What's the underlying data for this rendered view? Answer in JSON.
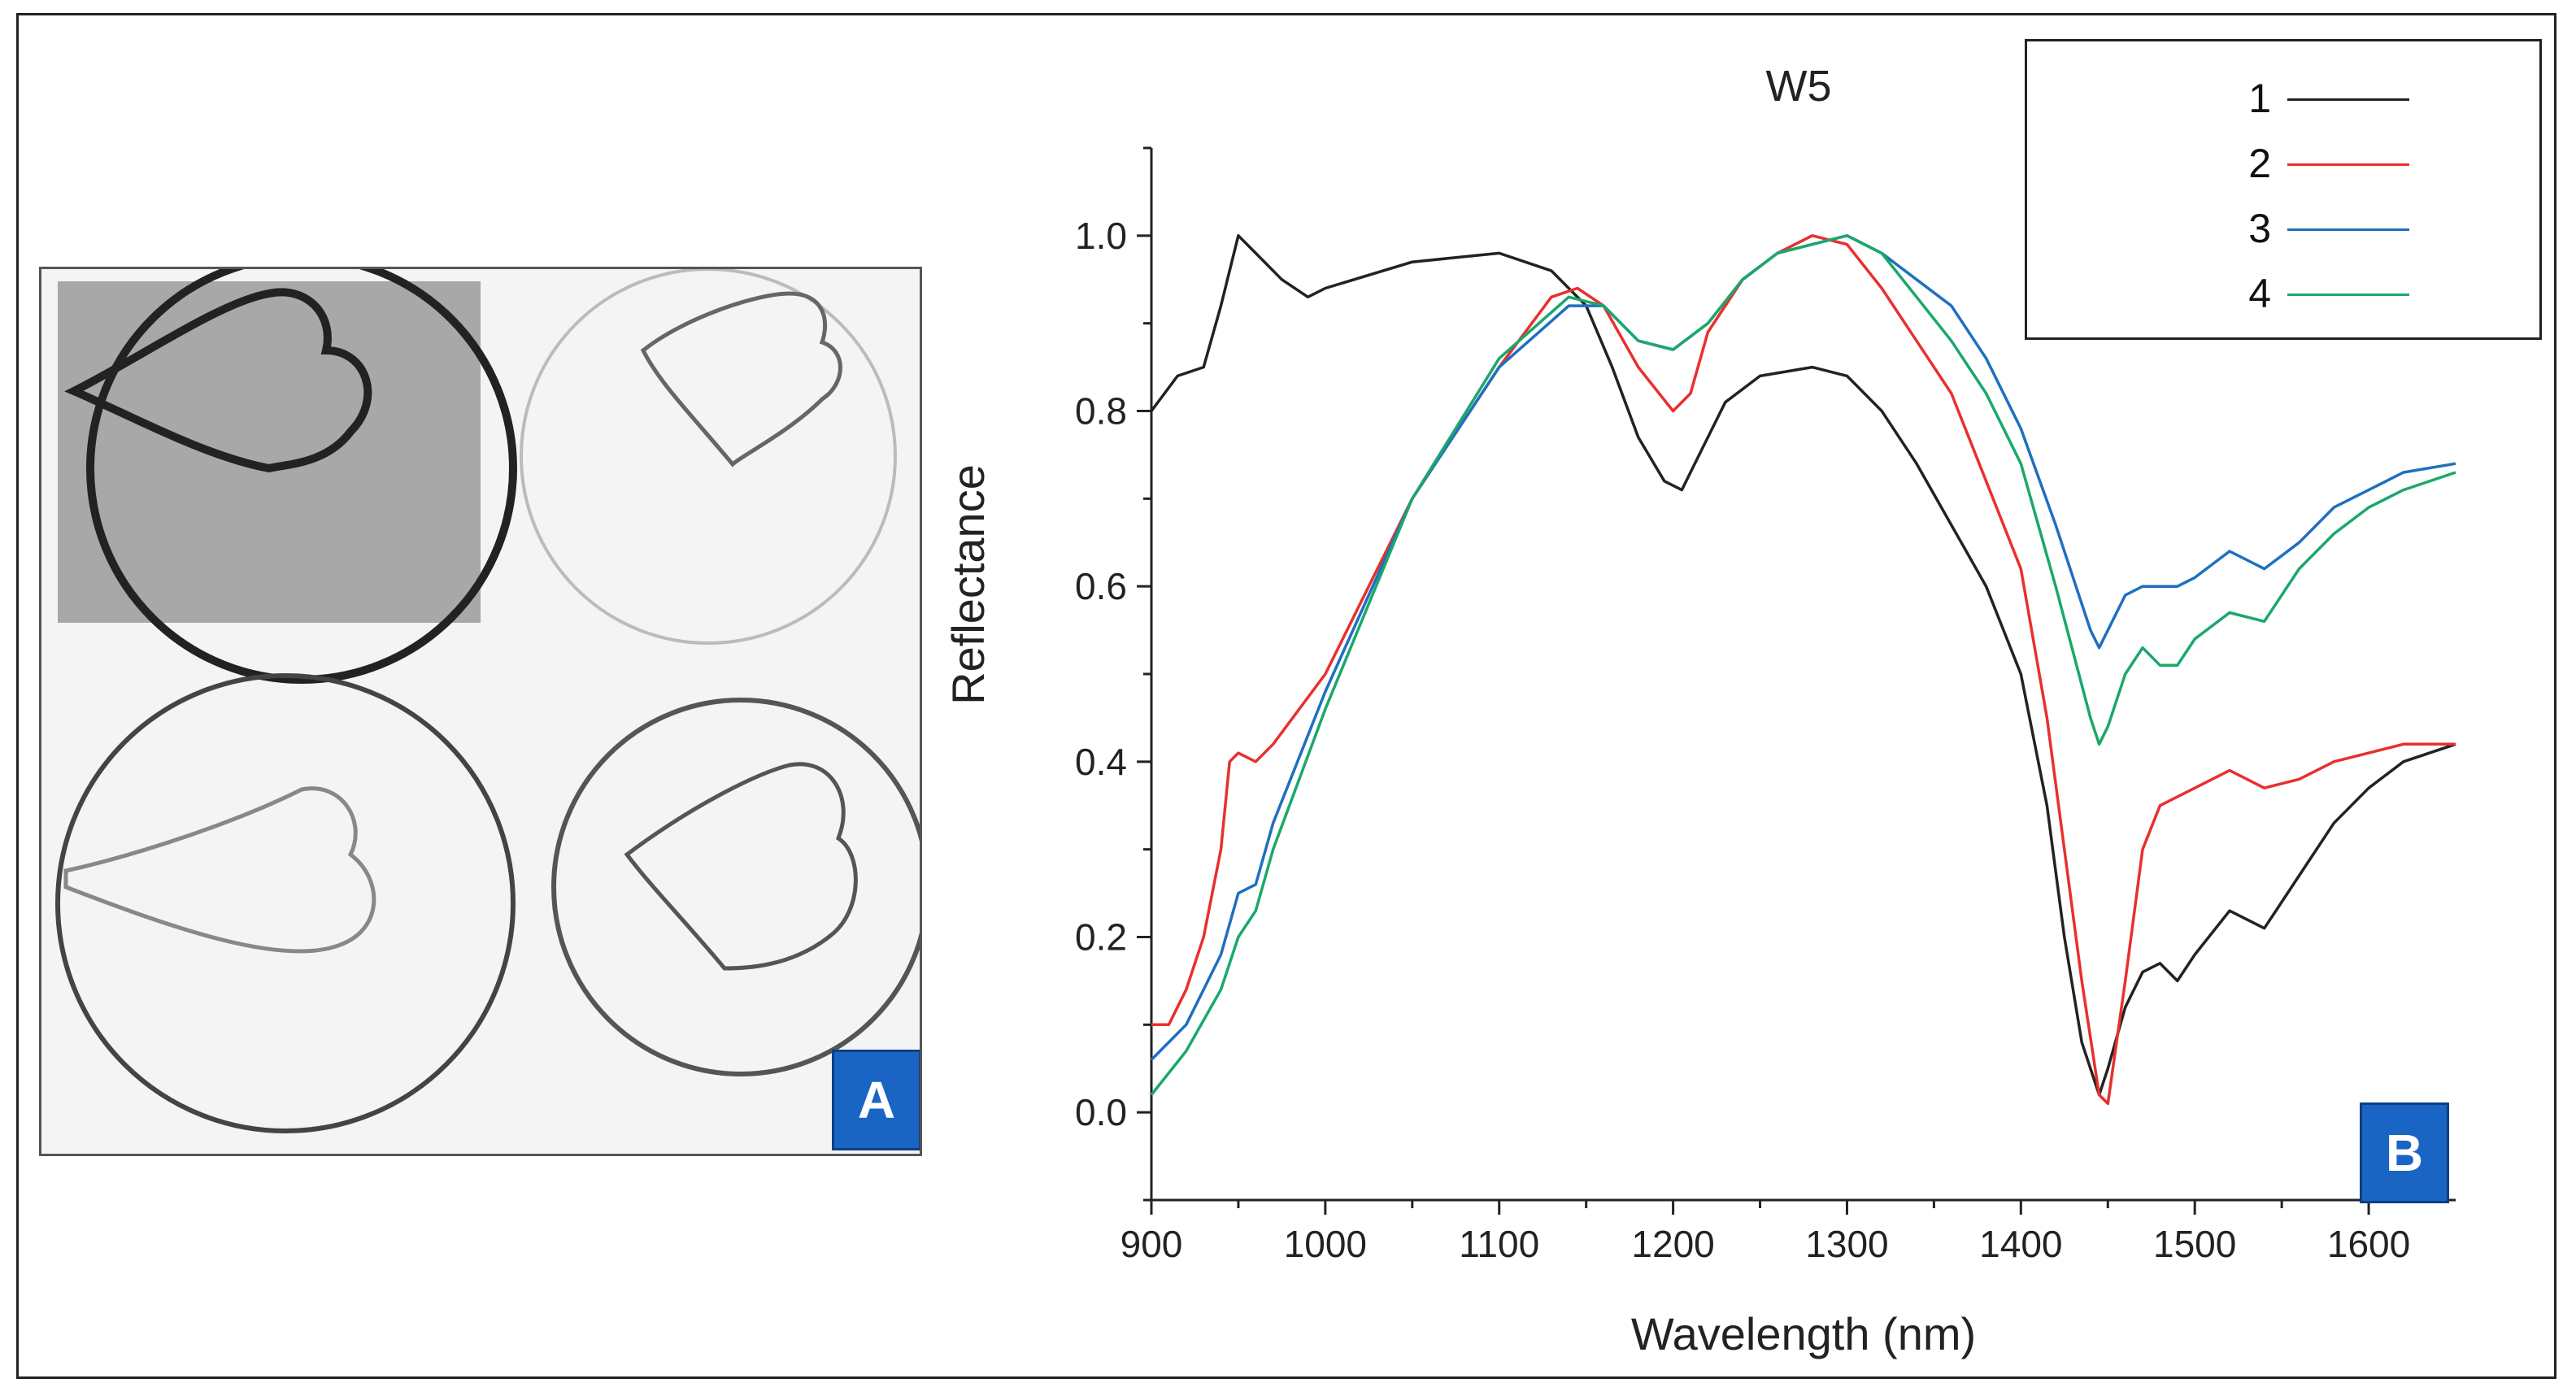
{
  "panel_a": {
    "badge": "A",
    "alt_subject": "four circular samples each containing a heart shape"
  },
  "panel_b": {
    "badge": "B"
  },
  "chart_data": {
    "type": "line",
    "title": "W5",
    "xlabel": "Wavelength (nm)",
    "ylabel": "Reflectance",
    "xlim": [
      900,
      1650
    ],
    "ylim": [
      -0.1,
      1.1
    ],
    "xticks": [
      900,
      1000,
      1100,
      1200,
      1300,
      1400,
      1500,
      1600
    ],
    "xtick_labels": [
      "900",
      "1000",
      "1100",
      "1200",
      "1300",
      "1400",
      "1500",
      "1600"
    ],
    "yticks": [
      0.0,
      0.2,
      0.4,
      0.6,
      0.8,
      1.0
    ],
    "ytick_labels": [
      "0.0",
      "0.2",
      "0.4",
      "0.6",
      "0.8",
      "1.0"
    ],
    "legend_position": "top-right",
    "series": [
      {
        "name": "1",
        "color": "#222222",
        "x": [
          900,
          915,
          930,
          940,
          950,
          960,
          975,
          990,
          1000,
          1050,
          1100,
          1130,
          1150,
          1165,
          1180,
          1195,
          1205,
          1215,
          1230,
          1250,
          1280,
          1300,
          1320,
          1340,
          1360,
          1380,
          1400,
          1415,
          1425,
          1435,
          1445,
          1450,
          1460,
          1470,
          1480,
          1490,
          1500,
          1520,
          1540,
          1560,
          1580,
          1600,
          1620,
          1650
        ],
        "values": [
          0.8,
          0.84,
          0.85,
          0.92,
          1.0,
          0.98,
          0.95,
          0.93,
          0.94,
          0.97,
          0.98,
          0.96,
          0.92,
          0.85,
          0.77,
          0.72,
          0.71,
          0.75,
          0.81,
          0.84,
          0.85,
          0.84,
          0.8,
          0.74,
          0.67,
          0.6,
          0.5,
          0.35,
          0.2,
          0.08,
          0.02,
          0.05,
          0.12,
          0.16,
          0.17,
          0.15,
          0.18,
          0.23,
          0.21,
          0.27,
          0.33,
          0.37,
          0.4,
          0.42
        ]
      },
      {
        "name": "2",
        "color": "#e8302e",
        "x": [
          900,
          910,
          920,
          930,
          940,
          945,
          950,
          960,
          970,
          1000,
          1050,
          1100,
          1130,
          1145,
          1160,
          1180,
          1200,
          1210,
          1220,
          1240,
          1260,
          1280,
          1300,
          1320,
          1340,
          1360,
          1380,
          1400,
          1415,
          1425,
          1435,
          1445,
          1450,
          1460,
          1470,
          1480,
          1500,
          1520,
          1540,
          1560,
          1580,
          1600,
          1620,
          1650
        ],
        "values": [
          0.1,
          0.1,
          0.14,
          0.2,
          0.3,
          0.4,
          0.41,
          0.4,
          0.42,
          0.5,
          0.7,
          0.85,
          0.93,
          0.94,
          0.92,
          0.85,
          0.8,
          0.82,
          0.89,
          0.95,
          0.98,
          1.0,
          0.99,
          0.94,
          0.88,
          0.82,
          0.72,
          0.62,
          0.45,
          0.3,
          0.15,
          0.02,
          0.01,
          0.15,
          0.3,
          0.35,
          0.37,
          0.39,
          0.37,
          0.38,
          0.4,
          0.41,
          0.42,
          0.42
        ]
      },
      {
        "name": "3",
        "color": "#1f6fc0",
        "x": [
          900,
          920,
          940,
          950,
          960,
          970,
          1000,
          1050,
          1100,
          1140,
          1160,
          1180,
          1200,
          1220,
          1240,
          1260,
          1280,
          1300,
          1320,
          1340,
          1360,
          1380,
          1400,
          1420,
          1440,
          1445,
          1450,
          1460,
          1470,
          1480,
          1490,
          1500,
          1520,
          1540,
          1560,
          1580,
          1600,
          1620,
          1650
        ],
        "values": [
          0.06,
          0.1,
          0.18,
          0.25,
          0.26,
          0.33,
          0.48,
          0.7,
          0.85,
          0.92,
          0.92,
          0.88,
          0.87,
          0.9,
          0.95,
          0.98,
          0.99,
          1.0,
          0.98,
          0.95,
          0.92,
          0.86,
          0.78,
          0.67,
          0.55,
          0.53,
          0.55,
          0.59,
          0.6,
          0.6,
          0.6,
          0.61,
          0.64,
          0.62,
          0.65,
          0.69,
          0.71,
          0.73,
          0.74
        ]
      },
      {
        "name": "4",
        "color": "#1aa86a",
        "x": [
          900,
          920,
          940,
          950,
          960,
          970,
          1000,
          1050,
          1100,
          1140,
          1160,
          1180,
          1200,
          1220,
          1240,
          1260,
          1280,
          1300,
          1320,
          1340,
          1360,
          1380,
          1400,
          1420,
          1440,
          1445,
          1450,
          1460,
          1470,
          1480,
          1490,
          1500,
          1520,
          1540,
          1560,
          1580,
          1600,
          1620,
          1650
        ],
        "values": [
          0.02,
          0.07,
          0.14,
          0.2,
          0.23,
          0.3,
          0.46,
          0.7,
          0.86,
          0.93,
          0.92,
          0.88,
          0.87,
          0.9,
          0.95,
          0.98,
          0.99,
          1.0,
          0.98,
          0.93,
          0.88,
          0.82,
          0.74,
          0.6,
          0.45,
          0.42,
          0.44,
          0.5,
          0.53,
          0.51,
          0.51,
          0.54,
          0.57,
          0.56,
          0.62,
          0.66,
          0.69,
          0.71,
          0.73
        ]
      }
    ]
  }
}
